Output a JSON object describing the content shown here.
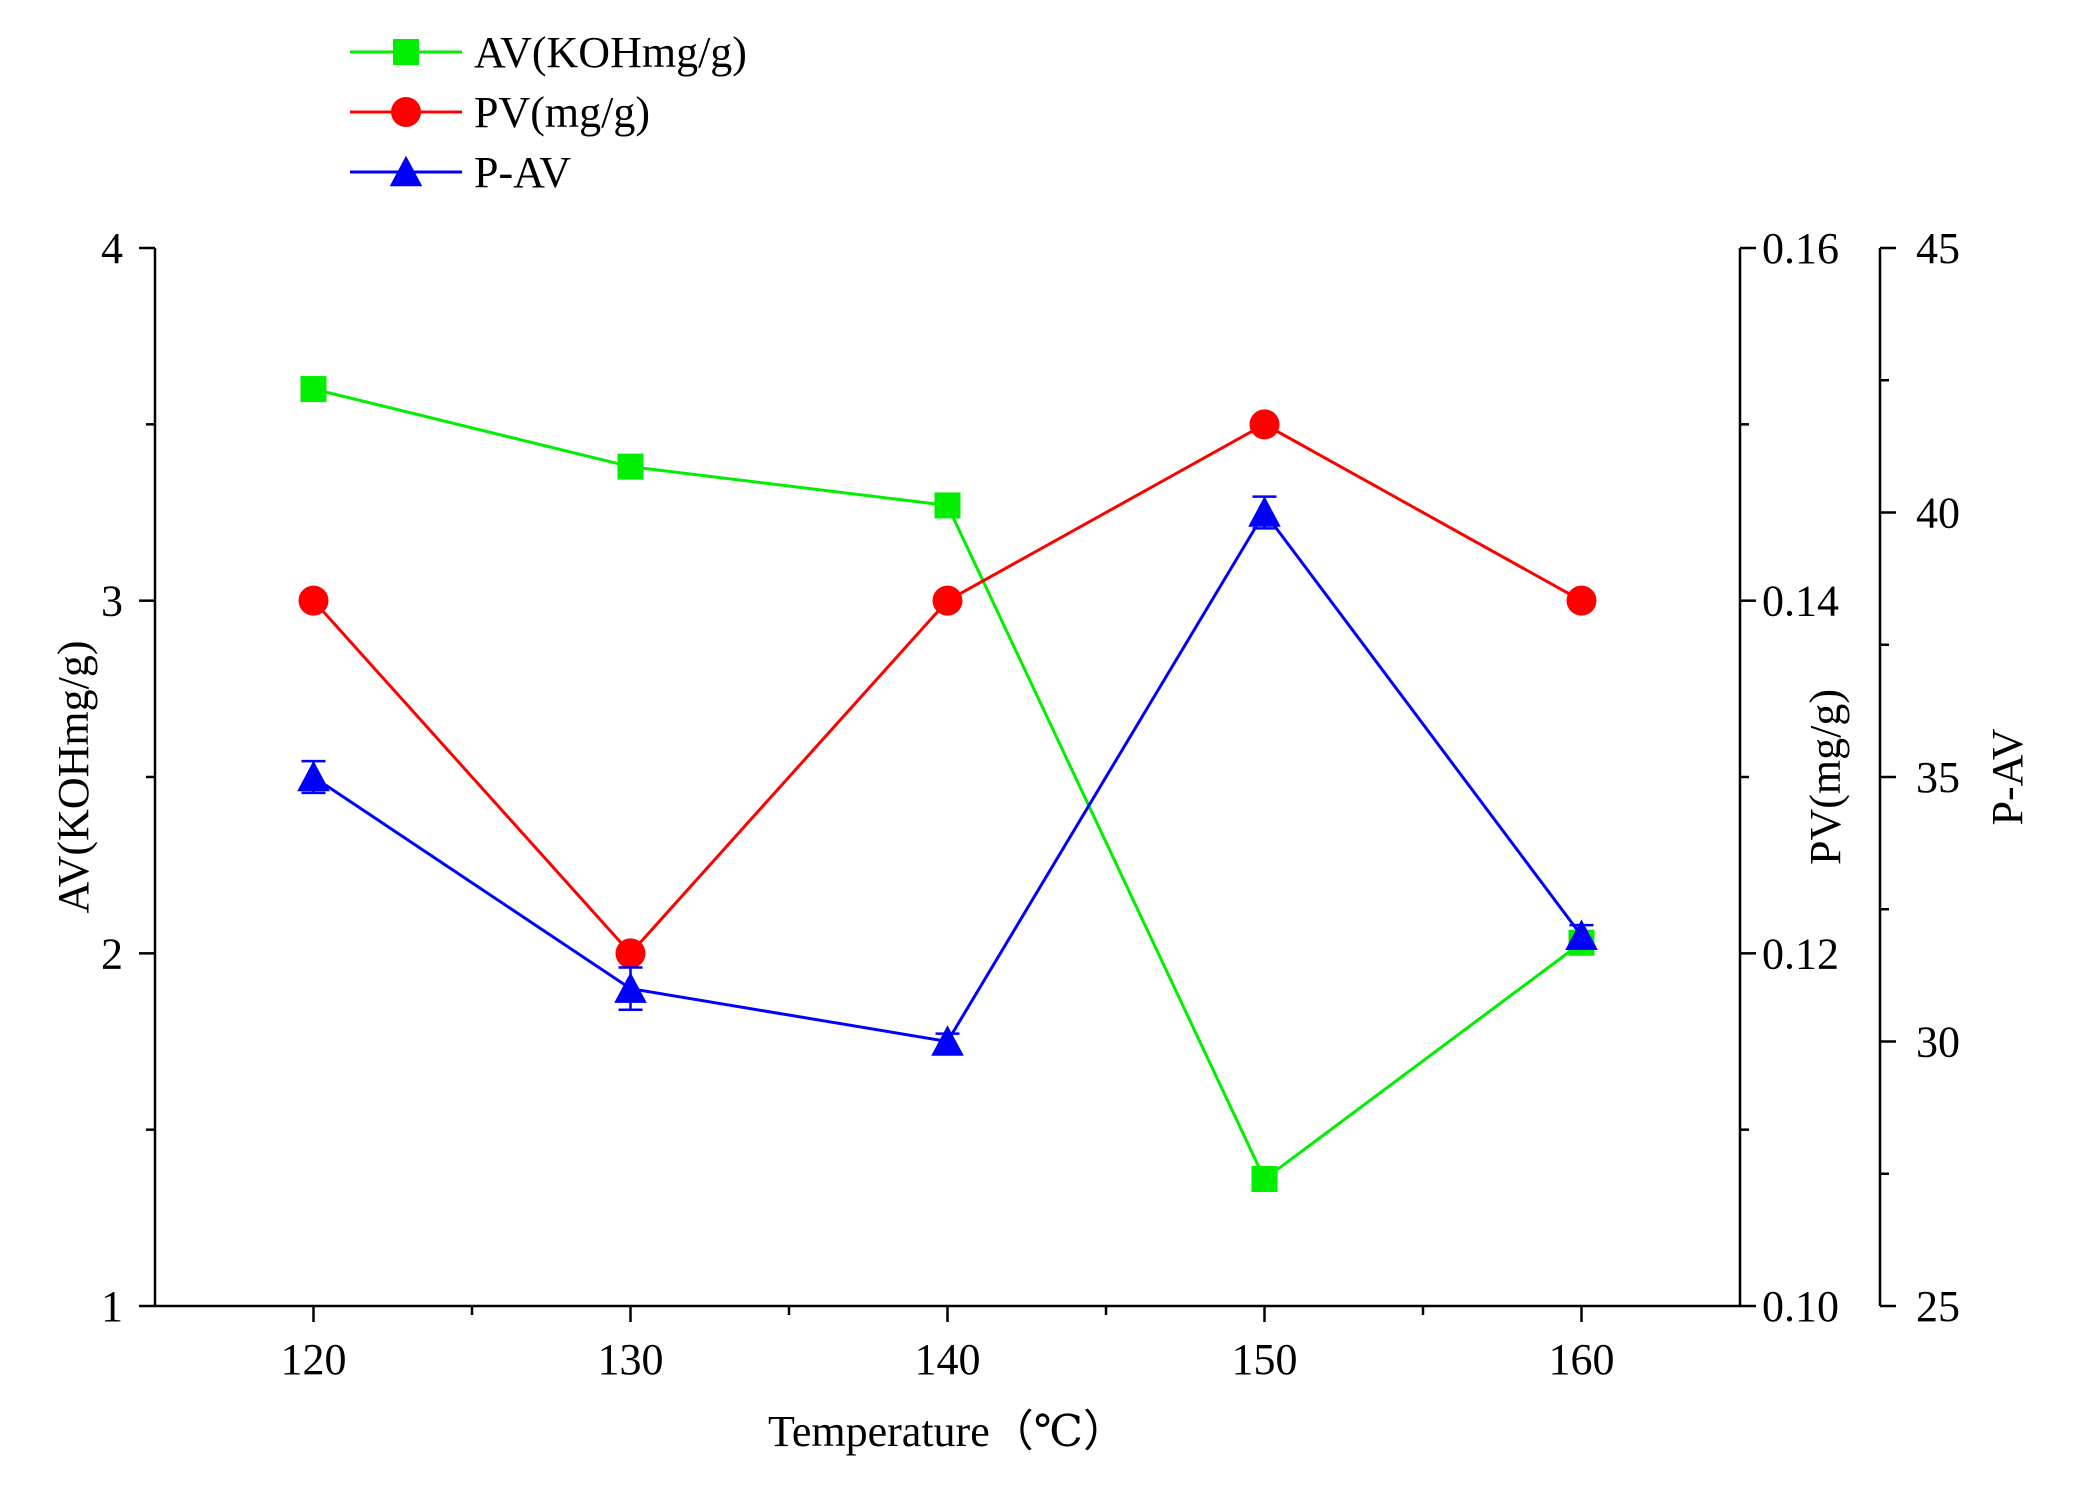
{
  "chart_data": {
    "type": "line",
    "x": [
      120,
      130,
      140,
      150,
      160
    ],
    "xlabel": "Temperature（℃）",
    "xlim": [
      115,
      165
    ],
    "xticks": [
      120,
      130,
      140,
      150,
      160
    ],
    "series": [
      {
        "name": "AV(KOHmg/g)",
        "axis": "left",
        "color": "#00ee00",
        "marker": "square",
        "values": [
          3.6,
          3.38,
          3.27,
          1.36,
          2.03
        ]
      },
      {
        "name": "PV(mg/g)",
        "axis": "right1",
        "color": "#ff0000",
        "marker": "circle",
        "values": [
          0.14,
          0.12,
          0.14,
          0.15,
          0.14
        ]
      },
      {
        "name": "P-AV",
        "axis": "right2",
        "color": "#0000ff",
        "marker": "triangle",
        "values": [
          35.0,
          31.0,
          30.0,
          40.0,
          32.0
        ],
        "errors": [
          0.3,
          0.4,
          0.15,
          0.3,
          0.2
        ]
      }
    ],
    "axes": {
      "left": {
        "label": "AV(KOHmg/g)",
        "ylim": [
          1,
          4
        ],
        "ticks": [
          "1",
          "2",
          "3",
          "4"
        ]
      },
      "right1": {
        "label": "PV(mg/g)",
        "ylim": [
          0.1,
          0.16
        ],
        "ticks": [
          "0.10",
          "0.12",
          "0.14",
          "0.16"
        ]
      },
      "right2": {
        "label": "P-AV",
        "ylim": [
          25,
          45
        ],
        "ticks": [
          "25",
          "30",
          "35",
          "40",
          "45"
        ]
      }
    },
    "legend": {
      "position": "top-left"
    },
    "grid": false
  }
}
